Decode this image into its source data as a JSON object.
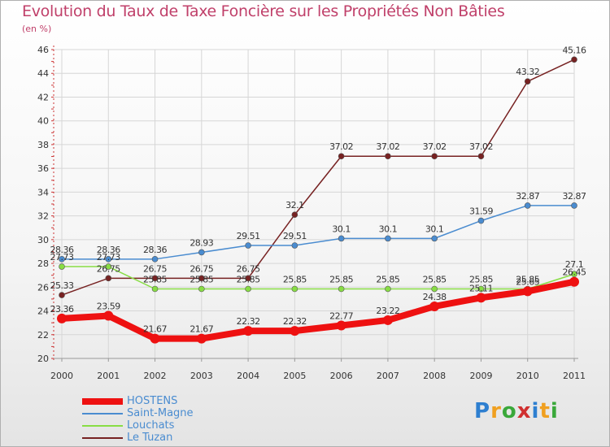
{
  "title": "Evolution du Taux de Taxe Foncière sur les Propriétés Non Bâties",
  "subtitle": "(en %)",
  "logo": {
    "letters": [
      "P",
      "r",
      "o",
      "x",
      "i",
      "t",
      "i"
    ],
    "colors": [
      "#2e7fd0",
      "#f0a020",
      "#3aa83a",
      "#d03030",
      "#2e7fd0",
      "#f0a020",
      "#3aa83a"
    ]
  },
  "chart_data": {
    "type": "line",
    "title": "Evolution du Taux de Taxe Foncière sur les Propriétés Non Bâties",
    "ylabel": "(en %)",
    "x": [
      "2000",
      "2001",
      "2002",
      "2003",
      "2004",
      "2005",
      "2006",
      "2007",
      "2008",
      "2009",
      "2010",
      "2011"
    ],
    "ylim": [
      20,
      46
    ],
    "yticks": [
      "20",
      "22",
      "24",
      "26",
      "28",
      "30",
      "32",
      "34",
      "36",
      "38",
      "40",
      "42",
      "44",
      "46"
    ],
    "grid": true,
    "legend_position": "bottom-left",
    "series": [
      {
        "name": "HOSTENS",
        "color": "#ee1111",
        "values": [
          23.36,
          23.59,
          21.67,
          21.67,
          22.32,
          22.32,
          22.77,
          23.22,
          24.38,
          25.11,
          25.65,
          26.45
        ],
        "labels": [
          "23.36",
          "23.59",
          "21.67",
          "21.67",
          "22.32",
          "22.32",
          "22.77",
          "23.22",
          "24.38",
          "25.11",
          "25.65",
          "26.45"
        ]
      },
      {
        "name": "Saint-Magne",
        "color": "#4a8cd0",
        "values": [
          28.36,
          28.36,
          28.36,
          28.93,
          29.51,
          29.51,
          30.1,
          30.1,
          30.1,
          31.59,
          32.87,
          32.87
        ],
        "labels": [
          "28.36",
          "28.36",
          "28.36",
          "28.93",
          "29.51",
          "29.51",
          "30.1",
          "30.1",
          "30.1",
          "31.59",
          "32.87",
          "32.87"
        ]
      },
      {
        "name": "Louchats",
        "color": "#88dd44",
        "values": [
          27.73,
          27.73,
          25.85,
          25.85,
          25.85,
          25.85,
          25.85,
          25.85,
          25.85,
          25.85,
          25.85,
          27.1
        ],
        "labels": [
          "27.73",
          "27.73",
          "25.85",
          "25.85",
          "25.85",
          "25.85",
          "25.85",
          "25.85",
          "25.85",
          "25.85",
          "25.85",
          "27.1"
        ]
      },
      {
        "name": "Le Tuzan",
        "color": "#772222",
        "values": [
          25.33,
          26.75,
          26.75,
          26.75,
          26.75,
          32.1,
          37.02,
          37.02,
          37.02,
          37.02,
          43.32,
          45.16
        ],
        "labels": [
          "25.33",
          "26.75",
          "26.75",
          "26.75",
          "26.75",
          "32.1",
          "37.02",
          "37.02",
          "37.02",
          "37.02",
          "43.32",
          "45.16"
        ]
      }
    ]
  }
}
